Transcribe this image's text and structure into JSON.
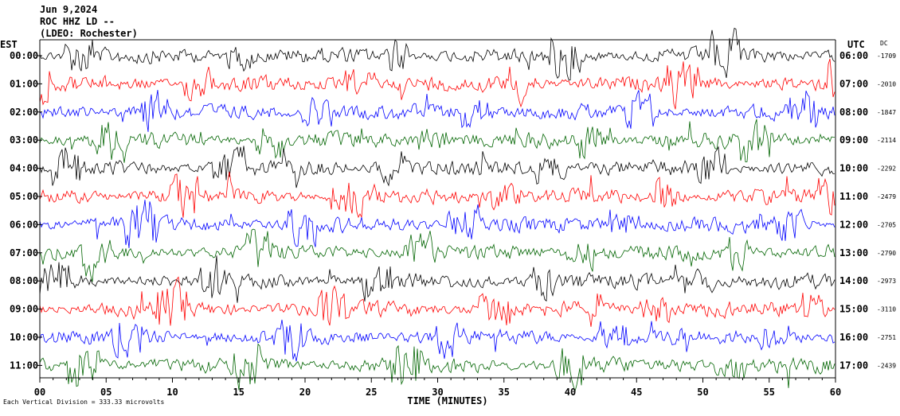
{
  "header": {
    "date": "Jun 9,2024",
    "station": "ROC HHZ LD --",
    "network": "(LDEO: Rochester)"
  },
  "chart_data": {
    "type": "line",
    "title": "",
    "xlabel": "TIME (MINUTES)",
    "ylabel": "",
    "left_axis_title": "EST",
    "right_axis_title": "UTC",
    "dc_title": "DC",
    "xlim": [
      0,
      60
    ],
    "x_ticks": [
      "00",
      "05",
      "10",
      "15",
      "20",
      "25",
      "30",
      "35",
      "40",
      "45",
      "50",
      "55",
      "60"
    ],
    "trace_colors": [
      "#000000",
      "#ff0000",
      "#0000ff",
      "#006400"
    ],
    "rows": [
      {
        "est": "00:00",
        "utc": "06:00",
        "dc": "-1709"
      },
      {
        "est": "01:00",
        "utc": "07:00",
        "dc": "-2010"
      },
      {
        "est": "02:00",
        "utc": "08:00",
        "dc": "-1847"
      },
      {
        "est": "03:00",
        "utc": "09:00",
        "dc": "-2114"
      },
      {
        "est": "04:00",
        "utc": "10:00",
        "dc": "-2292"
      },
      {
        "est": "05:00",
        "utc": "11:00",
        "dc": "-2479"
      },
      {
        "est": "06:00",
        "utc": "12:00",
        "dc": "-2705"
      },
      {
        "est": "07:00",
        "utc": "13:00",
        "dc": "-2790"
      },
      {
        "est": "08:00",
        "utc": "14:00",
        "dc": "-2973"
      },
      {
        "est": "09:00",
        "utc": "15:00",
        "dc": "-3110"
      },
      {
        "est": "10:00",
        "utc": "16:00",
        "dc": "-2751"
      },
      {
        "est": "11:00",
        "utc": "17:00",
        "dc": "-2439"
      }
    ],
    "scale_note": "Each Vertical Division = 333.33 microvolts",
    "grid": false
  }
}
